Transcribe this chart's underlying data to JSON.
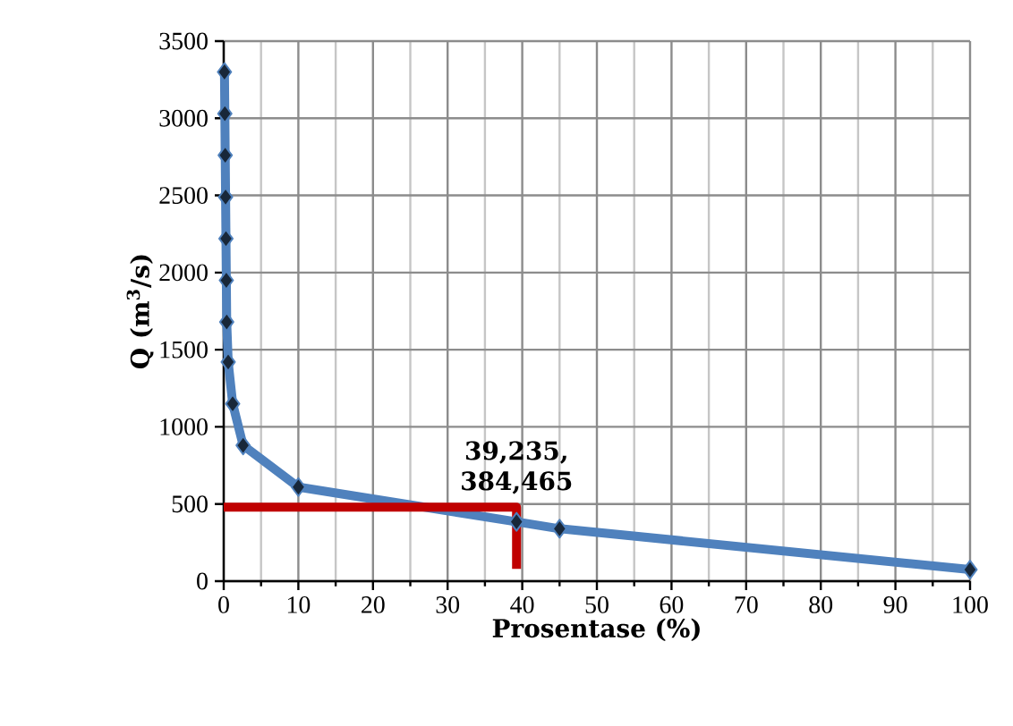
{
  "chart_data": {
    "type": "line",
    "xlabel": "Prosentase (%)",
    "ylabel": "Q (m$^{3}$/s)",
    "xlim": [
      0,
      100
    ],
    "ylim": [
      0,
      3500
    ],
    "xticks": [
      0,
      10,
      20,
      30,
      40,
      50,
      60,
      70,
      80,
      90,
      100
    ],
    "yticks": [
      0,
      500,
      1000,
      1500,
      2000,
      2500,
      3000,
      3500
    ],
    "grid": true,
    "line_style": "solid",
    "series": [
      {
        "color": "#4f81bd",
        "marker": "diamond",
        "x": [
          0.1,
          0.15,
          0.2,
          0.25,
          0.3,
          0.35,
          0.4,
          0.6,
          1.2,
          2.6,
          10,
          39.235,
          45,
          100
        ],
        "values": [
          3300,
          3030,
          2760,
          2490,
          2220,
          1950,
          1680,
          1420,
          1150,
          880,
          610,
          384.465,
          340,
          75
        ]
      },
      {
        "color": "#c00000",
        "marker": "none",
        "x": [
          0,
          39.235,
          39.235
        ],
        "values": [
          480,
          480,
          80
        ]
      }
    ],
    "annotations": [
      {
        "text": "39,235, 384,465",
        "x": 39.235,
        "y": 384.465
      }
    ]
  }
}
